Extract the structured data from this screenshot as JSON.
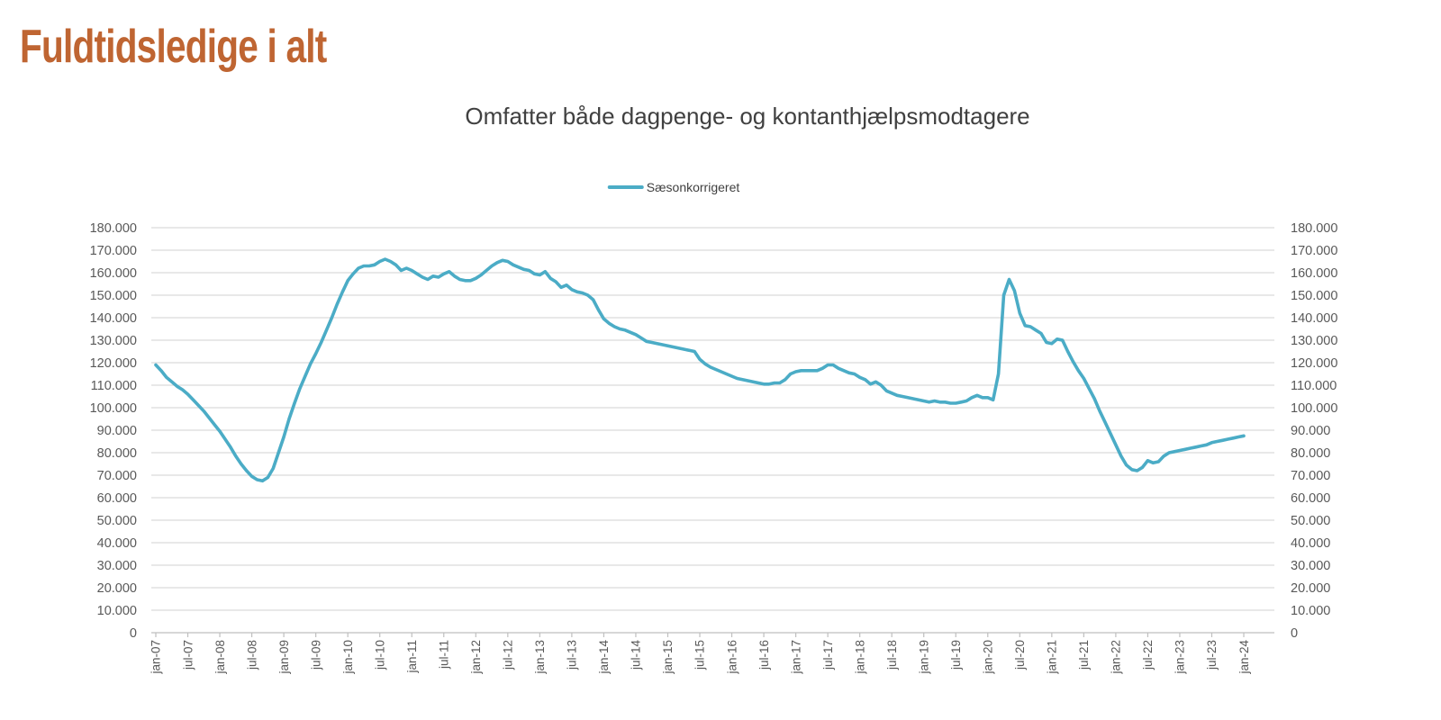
{
  "header": {
    "title": "Fuldtidsledige i alt"
  },
  "chart": {
    "title": "Omfatter både dagpenge- og kontanthjælpsmodtagere",
    "legend_label": "Sæsonkorrigeret"
  },
  "colors": {
    "page_title": "#BF6532",
    "chart_title": "#404040",
    "legend_text": "#404040",
    "line": "#4BACC6",
    "grid": "#D9D9D9",
    "axis": "#BFBFBF",
    "tick_label": "#595959"
  },
  "chart_data": {
    "type": "line",
    "title": "Omfatter både dagpenge- og kontanthjælpsmodtagere",
    "series_name": "Sæsonkorrigeret",
    "frequency": "monthly",
    "x_start": "jan-07",
    "x_end": "jan-24",
    "ylim": [
      0,
      180000
    ],
    "grid": "horizontal",
    "legend_position": "top-center",
    "x_tick_labels": [
      "jan-07",
      "jul-07",
      "jan-08",
      "jul-08",
      "jan-09",
      "jul-09",
      "jan-10",
      "jul-10",
      "jan-11",
      "jul-11",
      "jan-12",
      "jul-12",
      "jan-13",
      "jul-13",
      "jan-14",
      "jul-14",
      "jan-15",
      "jul-15",
      "jan-16",
      "jul-16",
      "jan-17",
      "jul-17",
      "jan-18",
      "jul-18",
      "jan-19",
      "jul-19",
      "jan-20",
      "jul-20",
      "jan-21",
      "jul-21",
      "jan-22",
      "jul-22",
      "jan-23",
      "jul-23",
      "jan-24"
    ],
    "y_tick_labels": [
      "0",
      "10.000",
      "20.000",
      "30.000",
      "40.000",
      "50.000",
      "60.000",
      "70.000",
      "80.000",
      "90.000",
      "100.000",
      "110.000",
      "120.000",
      "130.000",
      "140.000",
      "150.000",
      "160.000",
      "170.000",
      "180.000"
    ],
    "y_tick_values": [
      0,
      10000,
      20000,
      30000,
      40000,
      50000,
      60000,
      70000,
      80000,
      90000,
      100000,
      110000,
      120000,
      130000,
      140000,
      150000,
      160000,
      170000,
      180000
    ],
    "values": [
      119000,
      116500,
      113500,
      111500,
      109500,
      108000,
      106000,
      103500,
      101000,
      98500,
      95500,
      92500,
      89500,
      86000,
      82500,
      78500,
      75000,
      72000,
      69500,
      68000,
      67500,
      69000,
      73000,
      80000,
      87000,
      95000,
      102000,
      108500,
      114000,
      119500,
      124000,
      129000,
      134500,
      140000,
      146000,
      151500,
      156500,
      159500,
      162000,
      163000,
      163000,
      163500,
      165000,
      166000,
      165000,
      163500,
      161000,
      162000,
      161000,
      159500,
      158000,
      157000,
      158500,
      158000,
      159500,
      160500,
      158500,
      157000,
      156500,
      156500,
      157500,
      159000,
      161000,
      163000,
      164500,
      165500,
      165000,
      163500,
      162500,
      161500,
      161000,
      159500,
      159000,
      160500,
      157500,
      156000,
      153500,
      154500,
      152500,
      151500,
      151000,
      150000,
      148000,
      143500,
      139500,
      137500,
      136000,
      135000,
      134500,
      133500,
      132500,
      131000,
      129500,
      129000,
      128500,
      128000,
      127500,
      127000,
      126500,
      126000,
      125500,
      125000,
      121500,
      119500,
      118000,
      117000,
      116000,
      115000,
      114000,
      113000,
      112500,
      112000,
      111500,
      111000,
      110500,
      110500,
      111000,
      111000,
      112500,
      115000,
      116000,
      116500,
      116500,
      116500,
      116500,
      117500,
      119000,
      119000,
      117500,
      116500,
      115500,
      115000,
      113500,
      112500,
      110500,
      111500,
      110000,
      107500,
      106500,
      105500,
      105000,
      104500,
      104000,
      103500,
      103000,
      102500,
      103000,
      102500,
      102500,
      102000,
      102000,
      102500,
      103000,
      104500,
      105500,
      104500,
      104500,
      103500,
      115000,
      150000,
      157000,
      152000,
      142000,
      136500,
      136000,
      134500,
      133000,
      129000,
      128500,
      130500,
      130000,
      125000,
      120500,
      116500,
      113000,
      108500,
      104000,
      98500,
      93500,
      88500,
      83500,
      78500,
      74500,
      72500,
      72000,
      73500,
      76500,
      75500,
      76000,
      78500,
      80000,
      80500,
      81000,
      81500,
      82000,
      82500,
      83000,
      83500,
      84500,
      85000,
      85500,
      86000,
      86500,
      87000,
      87500
    ]
  }
}
